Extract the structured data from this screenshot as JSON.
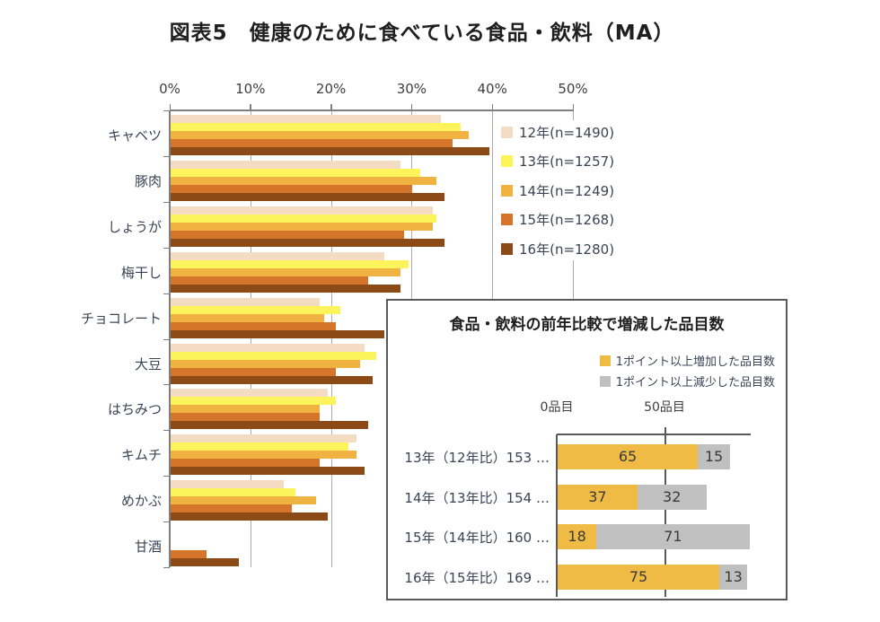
{
  "figure_title": "図表5　健康のために食べている食品・飲料（MA）",
  "colors": {
    "series_12": "#F4DCC3",
    "series_13": "#FDF45B",
    "series_14": "#F0B341",
    "series_15": "#D5752C",
    "series_16": "#8C4A17",
    "inset_increase": "#EFBB45",
    "inset_decrease": "#C0C0C0",
    "gridline": "#ABABAB",
    "axis": "#7F7F7F",
    "inset_border": "#595959"
  },
  "chart_data": [
    {
      "type": "bar",
      "orientation": "horizontal",
      "title": "図表5　健康のために食べている食品・飲料（MA）",
      "xlabel": "",
      "ylabel": "",
      "xlim": [
        0,
        50
      ],
      "x_ticks": [
        "0%",
        "10%",
        "20%",
        "30%",
        "40%",
        "50%"
      ],
      "grid": true,
      "legend_position": "right",
      "unit": "percent",
      "categories": [
        "キャベツ",
        "豚肉",
        "しょうが",
        "梅干し",
        "チョコレート",
        "大豆",
        "はちみつ",
        "キムチ",
        "めかぶ",
        "甘酒"
      ],
      "series": [
        {
          "name": "12年(n=1490)",
          "color": "#F4DCC3",
          "values": [
            33.5,
            28.5,
            32.5,
            26.5,
            18.5,
            24,
            19.5,
            23,
            14,
            null
          ]
        },
        {
          "name": "13年(n=1257)",
          "color": "#FDF45B",
          "values": [
            36,
            31,
            33,
            29.5,
            21,
            25.5,
            20.5,
            22,
            15.5,
            null
          ]
        },
        {
          "name": "14年(n=1249)",
          "color": "#F0B341",
          "values": [
            37,
            33,
            32.5,
            28.5,
            19,
            23.5,
            18.5,
            23,
            18,
            null
          ]
        },
        {
          "name": "15年(n=1268)",
          "color": "#D5752C",
          "values": [
            35,
            30,
            29,
            24.5,
            20.5,
            20.5,
            18.5,
            18.5,
            15,
            4.5
          ]
        },
        {
          "name": "16年(n=1280)",
          "color": "#8C4A17",
          "values": [
            39.5,
            34,
            34,
            28.5,
            26.5,
            25,
            24.5,
            24,
            19.5,
            8.5
          ]
        }
      ]
    },
    {
      "type": "bar",
      "orientation": "horizontal",
      "stacked": true,
      "title": "食品・飲料の前年比較で増減した品目数",
      "xlim": [
        0,
        90
      ],
      "x_ticks": [
        "0品目",
        "50品目"
      ],
      "x_tick_values": [
        0,
        50
      ],
      "legend_position": "top-right",
      "unit": "items",
      "categories": [
        "13年（12年比）153 …",
        "14年（13年比）154 …",
        "15年（14年比）160 …",
        "16年（15年比）169 …"
      ],
      "series": [
        {
          "name": "1ポイント以上増加した品目数",
          "color": "#EFBB45",
          "values": [
            65,
            37,
            18,
            75
          ]
        },
        {
          "name": "1ポイント以上減少した品目数",
          "color": "#C0C0C0",
          "values": [
            15,
            32,
            71,
            13
          ]
        }
      ],
      "value_labels": true
    }
  ]
}
